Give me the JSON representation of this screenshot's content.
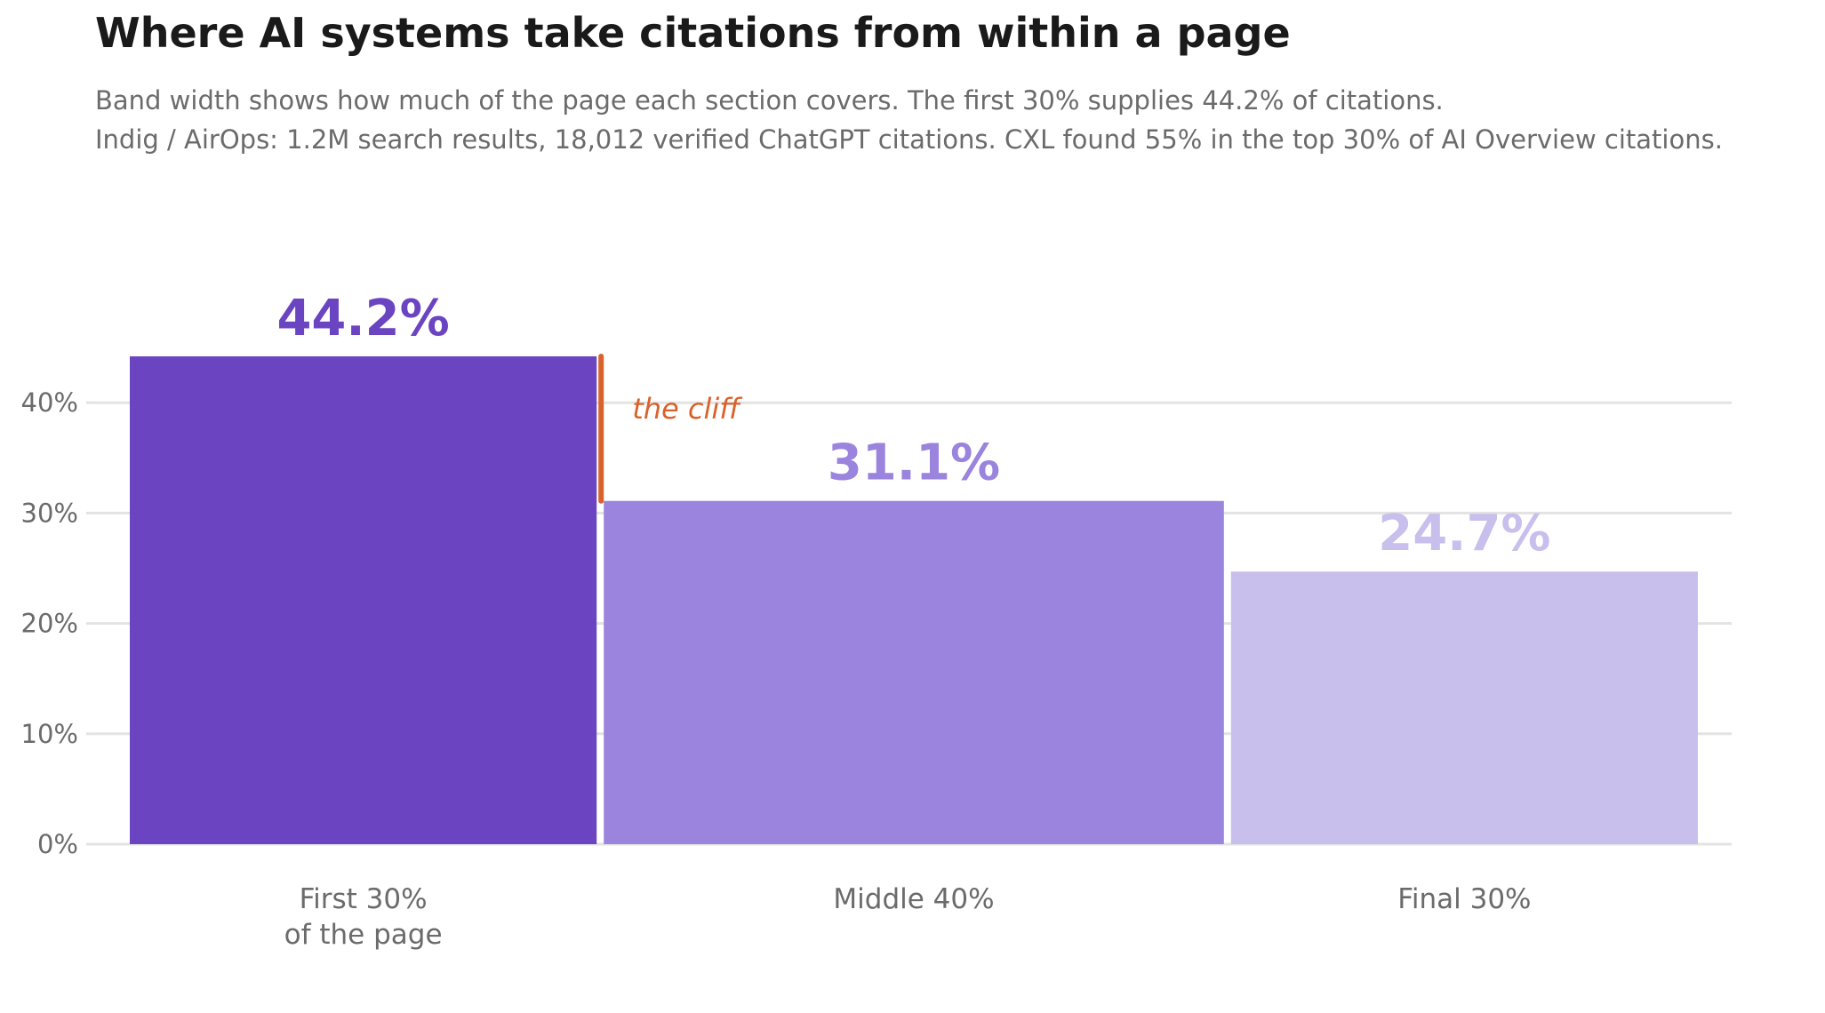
{
  "header": {
    "title": "Where AI systems take citations from within a page",
    "subtitle_line1": "Band width shows how much of the page each section covers. The first 30% supplies 44.2% of citations.",
    "subtitle_line2": "Indig / AirOps: 1.2M search results, 18,012 verified ChatGPT citations. CXL found 55% in the top 30% of AI Overview citations."
  },
  "chart_data": {
    "type": "bar",
    "variable_width": true,
    "categories": [
      {
        "label_lines": [
          "First 30%",
          "of the page"
        ],
        "share_of_page": 30,
        "value": 44.2,
        "value_label": "44.2%",
        "color": "#6b45c1"
      },
      {
        "label_lines": [
          "Middle 40%"
        ],
        "share_of_page": 40,
        "value": 31.1,
        "value_label": "31.1%",
        "color": "#9b84de"
      },
      {
        "label_lines": [
          "Final 30%"
        ],
        "share_of_page": 30,
        "value": 24.7,
        "value_label": "24.7%",
        "color": "#c9bfec"
      }
    ],
    "y_ticks": [
      {
        "value": 0,
        "label": "0%"
      },
      {
        "value": 10,
        "label": "10%"
      },
      {
        "value": 20,
        "label": "20%"
      },
      {
        "value": 30,
        "label": "30%"
      },
      {
        "value": 40,
        "label": "40%"
      }
    ],
    "ylim": [
      0,
      44.2
    ],
    "grid": true,
    "annotation": {
      "text": "the cliff",
      "from_value": 44.2,
      "to_value": 31.1,
      "color": "#d9622b"
    }
  },
  "colors": {
    "grid": "#e3e3e3",
    "axis_text": "#6b6b6b",
    "title": "#1a1a1a"
  }
}
